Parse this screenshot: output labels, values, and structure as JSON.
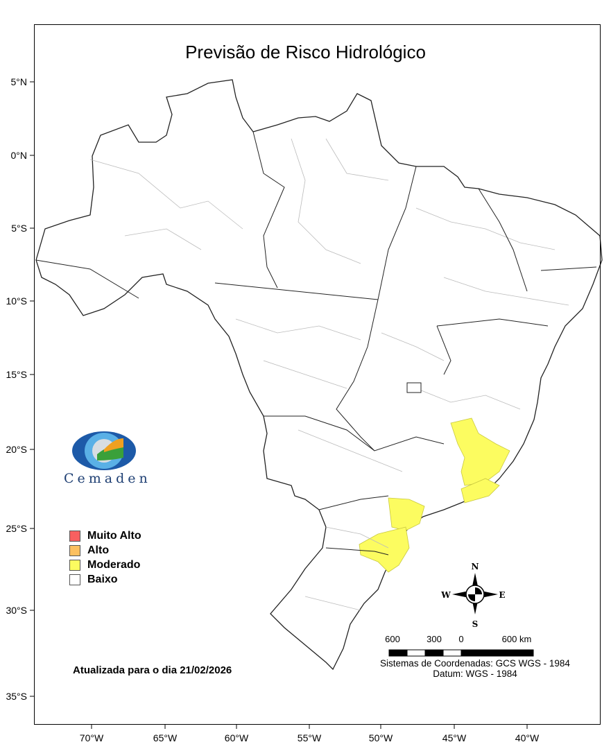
{
  "title": "Previsão de Risco Hidrológico",
  "lat_ticks": [
    "5°N",
    "0°N",
    "5°S",
    "10°S",
    "15°S",
    "20°S",
    "25°S",
    "30°S",
    "35°S"
  ],
  "lon_ticks": [
    "70°W",
    "65°W",
    "60°W",
    "55°W",
    "50°W",
    "45°W",
    "40°W"
  ],
  "legend": [
    {
      "label": "Muito Alto",
      "color": "#f86060"
    },
    {
      "label": "Alto",
      "color": "#fcc060"
    },
    {
      "label": "Moderado",
      "color": "#fcfc60"
    },
    {
      "label": "Baixo",
      "color": "#ffffff"
    }
  ],
  "logo_text": "Cemaden",
  "updated": "Atualizada para o dia 21/02/2026",
  "compass": {
    "n": "N",
    "s": "S",
    "e": "E",
    "w": "W"
  },
  "scale": [
    "600",
    "300",
    "0",
    "600 km"
  ],
  "coord_system": "Sistemas de Coordenadas: GCS WGS - 1984",
  "datum": "Datum: WGS - 1984",
  "colors": {
    "moderate": "#fcfc60",
    "state_border": "#222222",
    "muni_border": "#bbbbbb"
  }
}
